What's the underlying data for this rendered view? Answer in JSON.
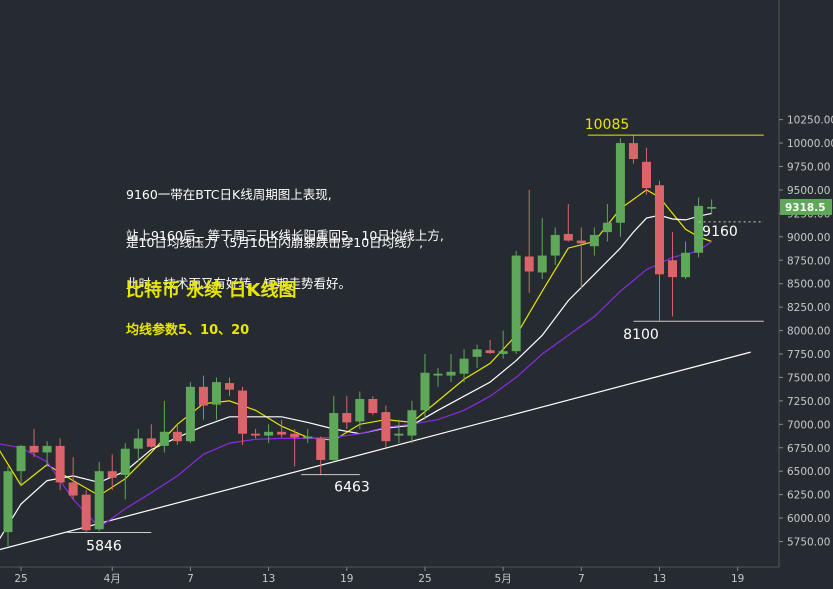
{
  "colors": {
    "background": "#262a31",
    "up": "#5fa85a",
    "down": "#d9656a",
    "ma5": "#e6e600",
    "ma10": "#ffffff",
    "ma20": "#8a2be2",
    "trend": "#ffffff",
    "title": "#e6e600",
    "axis_text": "#c8c8c8",
    "price_tag_bg": "#5fa85a"
  },
  "annotations": {
    "note1_line1": "9160一带在BTC日K线周期图上表现,",
    "note1_line2": "是10日均线压力（5月10日闪崩暴跌击穿10日均线）,",
    "note2_line1": "站上9160后，等于周三日K线长阳重回5、10日均线上方,",
    "note2_line2": "此时，技术面又有好转，短期走势看好。",
    "title": "比特币 永续 日K线图",
    "subtitle": "均线参数5、10、20"
  },
  "chart_data": {
    "type": "candlestick",
    "title": "比特币 永续 日K线图",
    "subtitle": "均线参数5、10、20",
    "ylim": [
      5550,
      10300
    ],
    "y_ticks": [
      5750,
      6000,
      6250,
      6500,
      6750,
      7000,
      7250,
      7500,
      7750,
      8000,
      8250,
      8500,
      8750,
      9000,
      9250,
      9500,
      9750,
      10000,
      10250
    ],
    "x_ticks": [
      {
        "day": 1,
        "label": "25"
      },
      {
        "day": 8,
        "label": "4月"
      },
      {
        "day": 14,
        "label": "7"
      },
      {
        "day": 20,
        "label": "13"
      },
      {
        "day": 26,
        "label": "19"
      },
      {
        "day": 32,
        "label": "25"
      },
      {
        "day": 38,
        "label": "5月"
      },
      {
        "day": 44,
        "label": "7"
      },
      {
        "day": 50,
        "label": "13"
      },
      {
        "day": 56,
        "label": "19"
      }
    ],
    "last_price": "9318.5",
    "candles": [
      {
        "day": -1,
        "o": 5900,
        "h": 6250,
        "l": 5620,
        "c": 5820
      },
      {
        "day": 0,
        "o": 5850,
        "h": 6550,
        "l": 5700,
        "c": 6500
      },
      {
        "day": 1,
        "o": 6500,
        "h": 6780,
        "l": 6350,
        "c": 6770
      },
      {
        "day": 2,
        "o": 6770,
        "h": 6950,
        "l": 6650,
        "c": 6700
      },
      {
        "day": 3,
        "o": 6700,
        "h": 6820,
        "l": 6550,
        "c": 6770
      },
      {
        "day": 4,
        "o": 6770,
        "h": 6850,
        "l": 6300,
        "c": 6380
      },
      {
        "day": 5,
        "o": 6380,
        "h": 6650,
        "l": 6200,
        "c": 6240
      },
      {
        "day": 6,
        "o": 6250,
        "h": 6300,
        "l": 5846,
        "c": 5870
      },
      {
        "day": 7,
        "o": 5880,
        "h": 6600,
        "l": 5860,
        "c": 6500
      },
      {
        "day": 8,
        "o": 6500,
        "h": 6680,
        "l": 6300,
        "c": 6430
      },
      {
        "day": 9,
        "o": 6460,
        "h": 6800,
        "l": 6200,
        "c": 6740
      },
      {
        "day": 10,
        "o": 6740,
        "h": 6950,
        "l": 6600,
        "c": 6850
      },
      {
        "day": 11,
        "o": 6850,
        "h": 7000,
        "l": 6750,
        "c": 6760
      },
      {
        "day": 12,
        "o": 6770,
        "h": 7250,
        "l": 6700,
        "c": 6920
      },
      {
        "day": 13,
        "o": 6920,
        "h": 7000,
        "l": 6780,
        "c": 6820
      },
      {
        "day": 14,
        "o": 6820,
        "h": 7450,
        "l": 6800,
        "c": 7400
      },
      {
        "day": 15,
        "o": 7400,
        "h": 7520,
        "l": 7050,
        "c": 7200
      },
      {
        "day": 16,
        "o": 7210,
        "h": 7500,
        "l": 7050,
        "c": 7450
      },
      {
        "day": 17,
        "o": 7440,
        "h": 7500,
        "l": 7300,
        "c": 7370
      },
      {
        "day": 18,
        "o": 7360,
        "h": 7400,
        "l": 6780,
        "c": 6900
      },
      {
        "day": 19,
        "o": 6900,
        "h": 6950,
        "l": 6850,
        "c": 6880
      },
      {
        "day": 20,
        "o": 6880,
        "h": 7000,
        "l": 6800,
        "c": 6920
      },
      {
        "day": 21,
        "o": 6920,
        "h": 7050,
        "l": 6860,
        "c": 6890
      },
      {
        "day": 22,
        "o": 6900,
        "h": 6950,
        "l": 6550,
        "c": 6860
      },
      {
        "day": 23,
        "o": 6850,
        "h": 6950,
        "l": 6800,
        "c": 6870
      },
      {
        "day": 24,
        "o": 6850,
        "h": 6870,
        "l": 6463,
        "c": 6620
      },
      {
        "day": 25,
        "o": 6620,
        "h": 7300,
        "l": 6600,
        "c": 7120
      },
      {
        "day": 26,
        "o": 7120,
        "h": 7300,
        "l": 6950,
        "c": 7020
      },
      {
        "day": 27,
        "o": 7030,
        "h": 7350,
        "l": 6950,
        "c": 7270
      },
      {
        "day": 28,
        "o": 7270,
        "h": 7300,
        "l": 7100,
        "c": 7120
      },
      {
        "day": 29,
        "o": 7130,
        "h": 7200,
        "l": 6750,
        "c": 6820
      },
      {
        "day": 30,
        "o": 6880,
        "h": 7050,
        "l": 6800,
        "c": 6900
      },
      {
        "day": 31,
        "o": 6880,
        "h": 7250,
        "l": 6800,
        "c": 7150
      },
      {
        "day": 32,
        "o": 7150,
        "h": 7750,
        "l": 7050,
        "c": 7550
      },
      {
        "day": 33,
        "o": 7520,
        "h": 7600,
        "l": 7400,
        "c": 7540
      },
      {
        "day": 34,
        "o": 7520,
        "h": 7750,
        "l": 7450,
        "c": 7560
      },
      {
        "day": 35,
        "o": 7540,
        "h": 7800,
        "l": 7450,
        "c": 7700
      },
      {
        "day": 36,
        "o": 7720,
        "h": 7850,
        "l": 7600,
        "c": 7800
      },
      {
        "day": 37,
        "o": 7790,
        "h": 7900,
        "l": 7750,
        "c": 7760
      },
      {
        "day": 38,
        "o": 7750,
        "h": 8000,
        "l": 7700,
        "c": 7780
      },
      {
        "day": 39,
        "o": 7780,
        "h": 8850,
        "l": 7750,
        "c": 8800
      },
      {
        "day": 40,
        "o": 8790,
        "h": 9500,
        "l": 8400,
        "c": 8630
      },
      {
        "day": 41,
        "o": 8620,
        "h": 9200,
        "l": 8550,
        "c": 8800
      },
      {
        "day": 42,
        "o": 8800,
        "h": 9100,
        "l": 8700,
        "c": 9020
      },
      {
        "day": 43,
        "o": 9030,
        "h": 9350,
        "l": 8950,
        "c": 8960
      },
      {
        "day": 44,
        "o": 8960,
        "h": 9100,
        "l": 8450,
        "c": 8930
      },
      {
        "day": 45,
        "o": 8900,
        "h": 9100,
        "l": 8800,
        "c": 9020
      },
      {
        "day": 46,
        "o": 9050,
        "h": 9350,
        "l": 8950,
        "c": 9150
      },
      {
        "day": 47,
        "o": 9150,
        "h": 10050,
        "l": 9000,
        "c": 10000
      },
      {
        "day": 48,
        "o": 10000,
        "h": 10085,
        "l": 9780,
        "c": 9830
      },
      {
        "day": 49,
        "o": 9800,
        "h": 9950,
        "l": 9450,
        "c": 9520
      },
      {
        "day": 50,
        "o": 9550,
        "h": 9600,
        "l": 8100,
        "c": 8600
      },
      {
        "day": 51,
        "o": 8750,
        "h": 9050,
        "l": 8150,
        "c": 8570
      },
      {
        "day": 52,
        "o": 8570,
        "h": 8950,
        "l": 8550,
        "c": 8830
      },
      {
        "day": 53,
        "o": 8830,
        "h": 9420,
        "l": 8780,
        "c": 9330
      },
      {
        "day": 54,
        "o": 9300,
        "h": 9400,
        "l": 9240,
        "c": 9318.5
      }
    ],
    "moving_averages": [
      {
        "name": "MA5",
        "color": "#e6e600",
        "points": [
          [
            -1,
            6800
          ],
          [
            1,
            6350
          ],
          [
            3,
            6570
          ],
          [
            5,
            6400
          ],
          [
            7,
            6240
          ],
          [
            9,
            6420
          ],
          [
            11,
            6700
          ],
          [
            13,
            7000
          ],
          [
            15,
            7220
          ],
          [
            17,
            7250
          ],
          [
            19,
            7150
          ],
          [
            21,
            6980
          ],
          [
            23,
            6860
          ],
          [
            25,
            6830
          ],
          [
            27,
            7000
          ],
          [
            29,
            7050
          ],
          [
            31,
            7020
          ],
          [
            33,
            7250
          ],
          [
            35,
            7480
          ],
          [
            37,
            7650
          ],
          [
            39,
            7950
          ],
          [
            41,
            8420
          ],
          [
            43,
            8880
          ],
          [
            45,
            8950
          ],
          [
            47,
            9300
          ],
          [
            49,
            9500
          ],
          [
            50,
            9420
          ],
          [
            51,
            9250
          ],
          [
            52,
            9080
          ],
          [
            53,
            9000
          ],
          [
            54,
            8950
          ]
        ]
      },
      {
        "name": "MA10",
        "color": "#ffffff",
        "points": [
          [
            -1,
            5700
          ],
          [
            1,
            6150
          ],
          [
            3,
            6400
          ],
          [
            5,
            6450
          ],
          [
            7,
            6380
          ],
          [
            9,
            6500
          ],
          [
            11,
            6730
          ],
          [
            13,
            6860
          ],
          [
            15,
            6980
          ],
          [
            17,
            7080
          ],
          [
            19,
            7080
          ],
          [
            21,
            7080
          ],
          [
            23,
            7020
          ],
          [
            25,
            6950
          ],
          [
            27,
            6900
          ],
          [
            29,
            6960
          ],
          [
            31,
            6990
          ],
          [
            33,
            7150
          ],
          [
            35,
            7300
          ],
          [
            37,
            7450
          ],
          [
            39,
            7680
          ],
          [
            41,
            7950
          ],
          [
            43,
            8320
          ],
          [
            45,
            8600
          ],
          [
            47,
            8880
          ],
          [
            48,
            9050
          ],
          [
            49,
            9200
          ],
          [
            50,
            9230
          ],
          [
            51,
            9190
          ],
          [
            52,
            9180
          ],
          [
            53,
            9220
          ],
          [
            54,
            9250
          ]
        ]
      },
      {
        "name": "MA20",
        "color": "#8a2be2",
        "points": [
          [
            -1,
            6800
          ],
          [
            1,
            6750
          ],
          [
            3,
            6600
          ],
          [
            5,
            6200
          ],
          [
            7,
            5900
          ],
          [
            9,
            6100
          ],
          [
            11,
            6270
          ],
          [
            13,
            6450
          ],
          [
            15,
            6680
          ],
          [
            17,
            6800
          ],
          [
            19,
            6840
          ],
          [
            21,
            6850
          ],
          [
            23,
            6850
          ],
          [
            25,
            6860
          ],
          [
            27,
            6900
          ],
          [
            29,
            6970
          ],
          [
            31,
            7000
          ],
          [
            33,
            7050
          ],
          [
            35,
            7150
          ],
          [
            37,
            7300
          ],
          [
            39,
            7500
          ],
          [
            41,
            7750
          ],
          [
            43,
            7950
          ],
          [
            45,
            8150
          ],
          [
            47,
            8420
          ],
          [
            49,
            8650
          ],
          [
            51,
            8780
          ],
          [
            53,
            8850
          ],
          [
            54,
            8950
          ]
        ]
      }
    ],
    "trendline": [
      [
        -1,
        5650
      ],
      [
        57,
        7770
      ]
    ],
    "levels": [
      {
        "label": "10085",
        "price": 10085,
        "from_day": 44.5,
        "to_day": 58
      },
      {
        "label": "9160",
        "price": 9160,
        "from_day": 53,
        "to_day": 58
      },
      {
        "label": "8100",
        "price": 8100,
        "from_day": 48,
        "to_day": 58
      },
      {
        "label": "6463",
        "price": 6463,
        "from_day": 22.5,
        "to_day": 27
      },
      {
        "label": "5846",
        "price": 5846,
        "from_day": 4.5,
        "to_day": 11
      }
    ]
  }
}
